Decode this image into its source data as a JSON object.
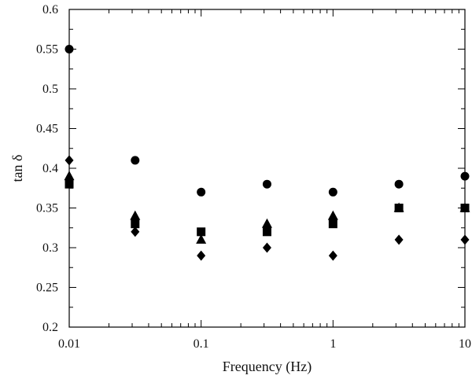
{
  "chart_data": {
    "type": "scatter",
    "title": "",
    "xlabel": "Frequency (Hz)",
    "ylabel": "tan δ",
    "x_scale": "log",
    "xlim": [
      0.01,
      10
    ],
    "ylim": [
      0.2,
      0.6
    ],
    "x_ticks": [
      "0.01",
      "0.1",
      "1",
      "10"
    ],
    "y_ticks": [
      "0.2",
      "0.25",
      "0.3",
      "0.35",
      "0.4",
      "0.45",
      "0.5",
      "0.55",
      "0.6"
    ],
    "grid": false,
    "legend": "none",
    "x": [
      0.01,
      0.0316,
      0.1,
      0.316,
      1,
      3.16,
      10
    ],
    "series": [
      {
        "marker": "circle",
        "values": [
          0.55,
          0.41,
          0.37,
          0.38,
          0.37,
          0.38,
          0.39
        ]
      },
      {
        "marker": "triangle",
        "values": [
          0.39,
          0.34,
          0.31,
          0.33,
          0.34,
          0.35,
          0.35
        ]
      },
      {
        "marker": "square",
        "values": [
          0.38,
          0.33,
          0.32,
          0.32,
          0.33,
          0.35,
          0.35
        ]
      },
      {
        "marker": "diamond",
        "values": [
          0.41,
          0.32,
          0.29,
          0.3,
          0.29,
          0.31,
          0.31
        ]
      }
    ],
    "marker_color": "#000000"
  }
}
